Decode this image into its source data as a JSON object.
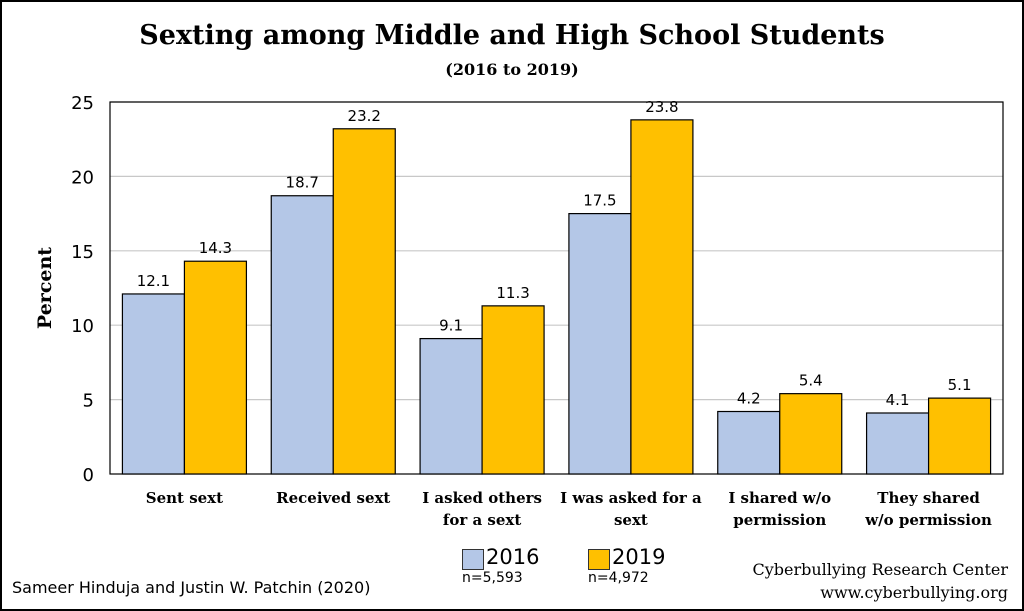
{
  "chart_data": {
    "type": "bar",
    "title": "Sexting among Middle and High School Students",
    "subtitle": "(2016 to 2019)",
    "ylabel": "Percent",
    "ylim": [
      0,
      25
    ],
    "yticks": [
      "0",
      "5",
      "10",
      "15",
      "20",
      "25"
    ],
    "grid": true,
    "categories": [
      [
        "Sent sext"
      ],
      [
        "Received sext"
      ],
      [
        "I asked others",
        "for a sext"
      ],
      [
        "I was asked for a",
        "sext"
      ],
      [
        "I shared w/o",
        "permission"
      ],
      [
        "They shared",
        "w/o permission"
      ]
    ],
    "series": [
      {
        "name": "2016",
        "n": "n=5,593",
        "color": "#B4C7E7",
        "values": [
          12.1,
          18.7,
          9.1,
          17.5,
          4.2,
          4.1
        ]
      },
      {
        "name": "2019",
        "n": "n=4,972",
        "color": "#FFC000",
        "values": [
          14.3,
          23.2,
          11.3,
          23.8,
          5.4,
          5.1
        ]
      }
    ],
    "legend_position": "bottom"
  },
  "footer": {
    "authors": "Sameer Hinduja and Justin W. Patchin (2020)",
    "org": "Cyberbullying Research Center",
    "url": "www.cyberbullying.org"
  }
}
